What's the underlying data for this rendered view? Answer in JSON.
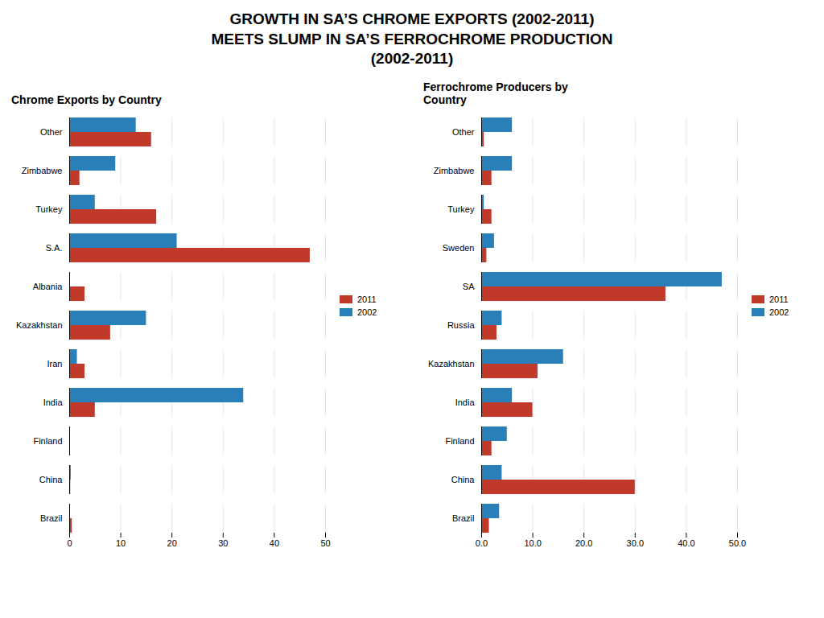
{
  "title": "GROWTH IN SA’S CHROME EXPORTS (2002-2011)\nMEETS SLUMP IN SA’S FERROCHROME PRODUCTION\n(2002-2011)",
  "chart_data": [
    {
      "type": "bar",
      "orientation": "horizontal",
      "title": "Chrome Exports by Country",
      "categories": [
        "Other",
        "Zimbabwe",
        "Turkey",
        "S.A.",
        "Albania",
        "Kazakhstan",
        "Iran",
        "India",
        "Finland",
        "China",
        "Brazil"
      ],
      "series": [
        {
          "name": "2011",
          "color": "#C0392B",
          "values": [
            16,
            2,
            17,
            47,
            3,
            8,
            3,
            5,
            0,
            0.2,
            0.5
          ]
        },
        {
          "name": "2002",
          "color": "#2980B9",
          "values": [
            13,
            9,
            5,
            21,
            0,
            15,
            1.5,
            34,
            0,
            0.3,
            0
          ]
        }
      ],
      "xlim": [
        0,
        50
      ],
      "xticks": [
        0,
        10,
        20,
        30,
        40,
        50
      ],
      "grid": true,
      "legend": "right"
    },
    {
      "type": "bar",
      "orientation": "horizontal",
      "title": "Ferrochrome Producers by\nCountry",
      "categories": [
        "Other",
        "Zimbabwe",
        "Turkey",
        "Sweden",
        "SA",
        "Russia",
        "Kazakhstan",
        "India",
        "Finland",
        "China",
        "Brazil"
      ],
      "series": [
        {
          "name": "2011",
          "color": "#C0392B",
          "values": [
            0.5,
            2,
            2,
            1,
            36,
            3,
            11,
            10,
            2,
            30,
            1.5
          ]
        },
        {
          "name": "2002",
          "color": "#2980B9",
          "values": [
            6,
            6,
            0.5,
            2.5,
            47,
            4,
            16,
            6,
            5,
            4,
            3.5
          ]
        }
      ],
      "xlim": [
        0,
        50
      ],
      "xticks": [
        {
          "value": 0,
          "label": "0.0"
        },
        {
          "value": 10,
          "label": "10.0"
        },
        {
          "value": 20,
          "label": "20.0"
        },
        {
          "value": 30,
          "label": "30.0"
        },
        {
          "value": 40,
          "label": "40.0"
        },
        {
          "value": 50,
          "label": "50.0"
        }
      ],
      "grid": true,
      "legend": "right"
    }
  ]
}
